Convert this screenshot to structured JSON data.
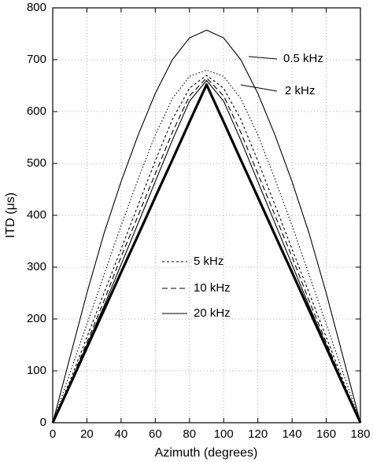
{
  "chart_data": {
    "type": "line",
    "x_label": "Azimuth (degrees)",
    "y_label": "ITD (μs)",
    "x": [
      0,
      10,
      20,
      30,
      40,
      50,
      60,
      70,
      80,
      90,
      100,
      110,
      120,
      130,
      140,
      150,
      160,
      170,
      180
    ],
    "xlim": [
      0,
      180
    ],
    "xticks": [
      0,
      20,
      40,
      60,
      80,
      100,
      120,
      140,
      160,
      180
    ],
    "ylim": [
      0,
      800
    ],
    "yticks": [
      0,
      100,
      200,
      300,
      400,
      500,
      600,
      700,
      800
    ],
    "grid": true,
    "series": [
      {
        "name": "0.5 kHz",
        "color": "#000000",
        "style": "solid",
        "legend": false,
        "values": [
          0,
          125,
          250,
          365,
          465,
          555,
          635,
          700,
          742,
          757,
          742,
          700,
          635,
          555,
          465,
          365,
          250,
          125,
          0
        ]
      },
      {
        "name": "2 kHz",
        "color": "#000000",
        "style": "dotted",
        "legend": false,
        "values": [
          0,
          95,
          190,
          285,
          380,
          470,
          555,
          625,
          668,
          680,
          668,
          625,
          555,
          470,
          380,
          285,
          190,
          95,
          0
        ]
      },
      {
        "name": "5 kHz",
        "color": "#000000",
        "style": "short-dash",
        "legend": true,
        "values": [
          0,
          80,
          165,
          250,
          335,
          420,
          505,
          585,
          645,
          670,
          645,
          585,
          505,
          420,
          335,
          250,
          165,
          80,
          0
        ]
      },
      {
        "name": "10 kHz",
        "color": "#000000",
        "style": "dashed",
        "legend": true,
        "values": [
          0,
          75,
          155,
          235,
          320,
          400,
          480,
          560,
          630,
          665,
          630,
          560,
          480,
          400,
          320,
          235,
          155,
          75,
          0
        ]
      },
      {
        "name": "20 kHz",
        "color": "#000000",
        "style": "solid",
        "legend": true,
        "values": [
          0,
          75,
          150,
          225,
          305,
          385,
          465,
          545,
          620,
          660,
          620,
          545,
          465,
          385,
          305,
          225,
          150,
          75,
          0
        ]
      },
      {
        "color": "#000000",
        "style": "thick",
        "values": [
          0,
          72,
          145,
          217,
          290,
          362,
          435,
          507,
          580,
          652,
          580,
          507,
          435,
          362,
          290,
          217,
          145,
          72,
          0
        ]
      }
    ]
  }
}
